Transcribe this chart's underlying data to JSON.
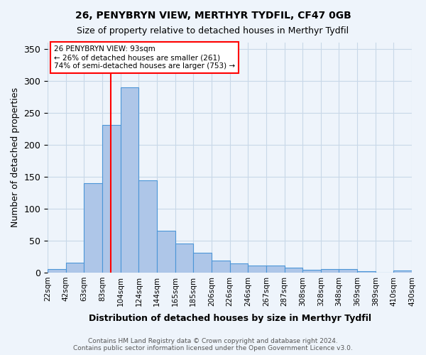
{
  "title1": "26, PENYBRYN VIEW, MERTHYR TYDFIL, CF47 0GB",
  "title2": "Size of property relative to detached houses in Merthyr Tydfil",
  "xlabel": "Distribution of detached houses by size in Merthyr Tydfil",
  "ylabel": "Number of detached properties",
  "categories": [
    "22sqm",
    "42sqm",
    "63sqm",
    "83sqm",
    "104sqm",
    "124sqm",
    "144sqm",
    "165sqm",
    "185sqm",
    "206sqm",
    "226sqm",
    "246sqm",
    "267sqm",
    "287sqm",
    "308sqm",
    "328sqm",
    "348sqm",
    "369sqm",
    "389sqm",
    "410sqm",
    "430sqm"
  ],
  "values": [
    5,
    15,
    140,
    231,
    290,
    144,
    66,
    46,
    31,
    19,
    14,
    11,
    11,
    8,
    4,
    5,
    5,
    2,
    0,
    3
  ],
  "bar_color": "#aec6e8",
  "bar_edge_color": "#4c96d7",
  "grid_color": "#c8d8e8",
  "background_color": "#eef4fb",
  "annotation_line1": "26 PENYBRYN VIEW: 93sqm",
  "annotation_line2": "← 26% of detached houses are smaller (261)",
  "annotation_line3": "74% of semi-detached houses are larger (753) →",
  "annotation_box_color": "white",
  "annotation_box_edge": "red",
  "footer": "Contains HM Land Registry data © Crown copyright and database right 2024.\nContains public sector information licensed under the Open Government Licence v3.0.",
  "ylim": [
    0,
    360
  ],
  "yticks": [
    0,
    50,
    100,
    150,
    200,
    250,
    300,
    350
  ],
  "red_line_sqm": 93,
  "bin_start_sqm": [
    22,
    42,
    63,
    83,
    104,
    124,
    144,
    165,
    185,
    206,
    226,
    246,
    267,
    287,
    308,
    328,
    348,
    369,
    389,
    410,
    430
  ]
}
